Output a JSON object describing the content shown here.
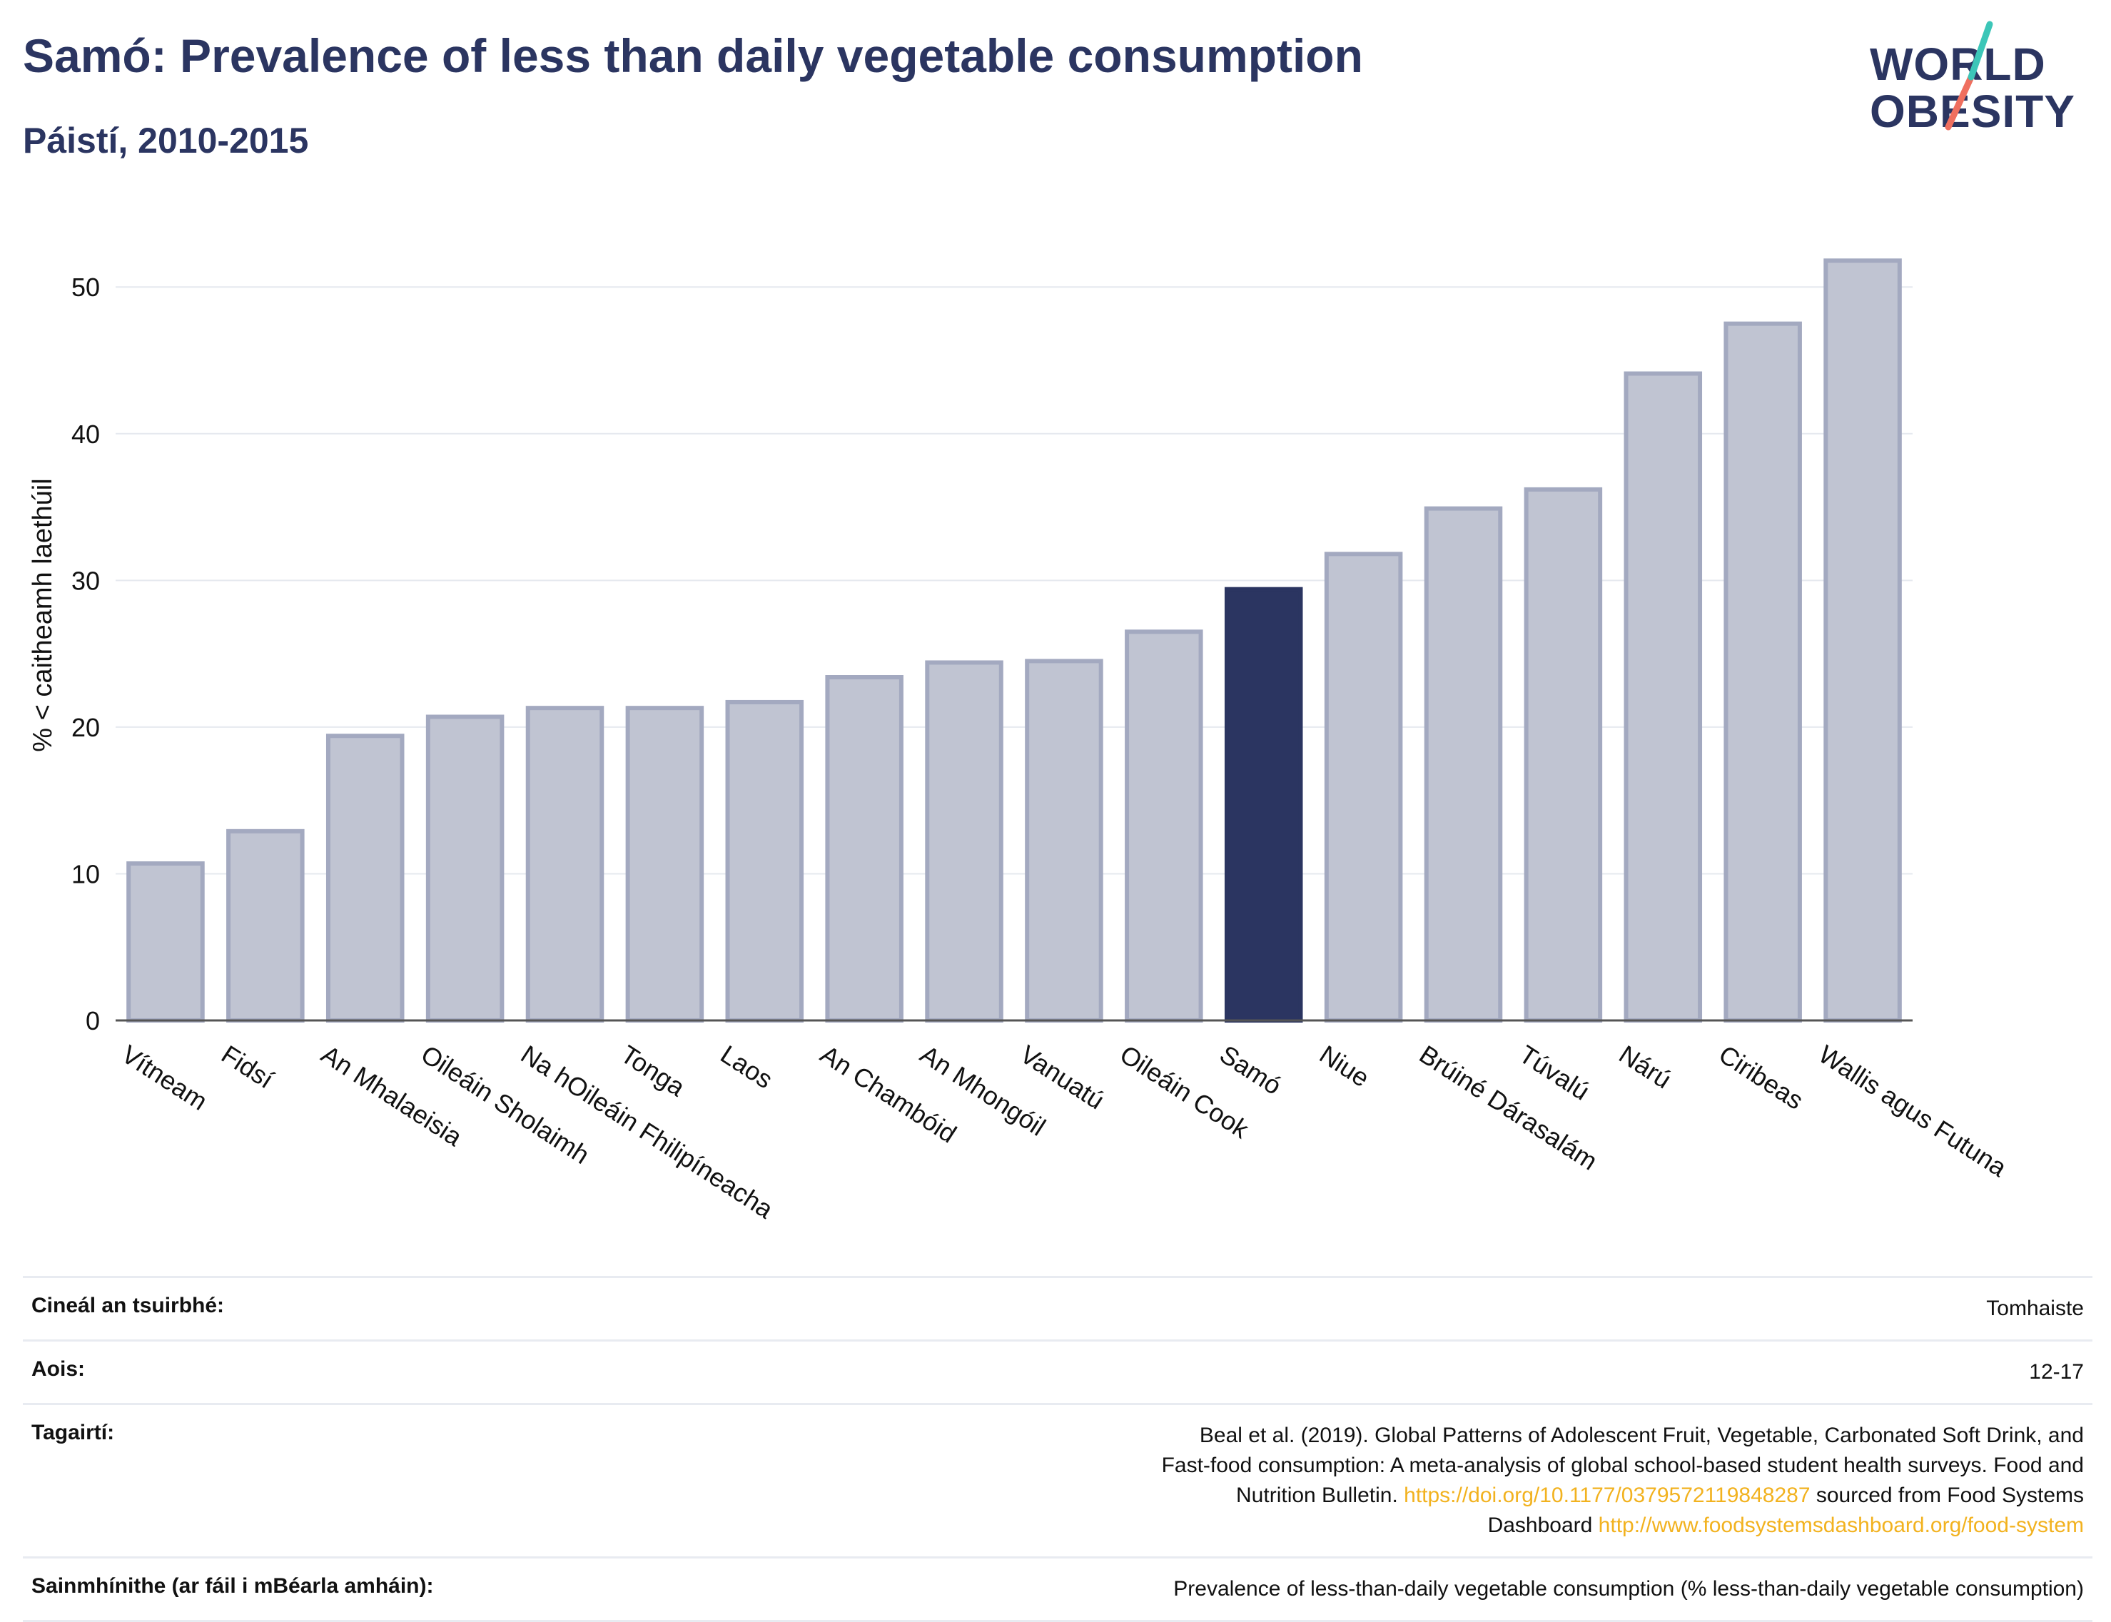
{
  "header": {
    "title": "Samó: Prevalence of less than daily vegetable consumption",
    "subtitle": "Páistí, 2010-2015"
  },
  "logo": {
    "line1": "WORLD",
    "line2": "OBESITY"
  },
  "colors": {
    "highlight": "#2b3561",
    "bar_fill": "#c0c4d2",
    "bar_stroke": "#a3a9c0",
    "grid": "#e6e9ef",
    "axis": "#555555",
    "logo_teal": "#3cc6b8",
    "logo_coral": "#ef6f5f",
    "link": "#f2b21f"
  },
  "chart_data": {
    "type": "bar",
    "ylabel": "% < caitheamh laethúil",
    "ylim": [
      0,
      54
    ],
    "yticks": [
      0,
      10,
      20,
      30,
      40,
      50
    ],
    "grid": true,
    "highlight": "Samó",
    "categories": [
      "Vítneam",
      "Fidsí",
      "An Mhalaeisia",
      "Oileáin Sholaimh",
      "Na hOileáin Fhilipíneacha",
      "Tonga",
      "Laos",
      "An Chambóid",
      "An Mhongóil",
      "Vanuatú",
      "Oileáin Cook",
      "Samó",
      "Niue",
      "Brúiné Dárasalám",
      "Túvalú",
      "Nárú",
      "Ciribeas",
      "Wallis agus Futuna"
    ],
    "values": [
      10.7,
      12.9,
      19.4,
      20.7,
      21.3,
      21.3,
      21.7,
      23.4,
      24.4,
      24.5,
      26.5,
      29.4,
      31.8,
      34.9,
      36.2,
      44.1,
      47.5,
      51.8
    ]
  },
  "info": {
    "rows": [
      {
        "label": "Cineál an tsuirbhé:",
        "value": "Tomhaiste"
      },
      {
        "label": "Aois:",
        "value": "12-17"
      },
      {
        "label": "Tagairtí:",
        "value": "Beal et al. (2019). Global Patterns of Adolescent Fruit, Vegetable, Carbonated Soft Drink, and Fast-food consumption: A meta-analysis of global school-based student health surveys. Food and Nutrition Bulletin.",
        "link1": "https://doi.org/10.1177/0379572119848287",
        "mid": " sourced from Food Systems Dashboard ",
        "link2": "http://www.foodsystemsdashboard.org/food-system"
      },
      {
        "label": "Sainmhínithe (ar fáil i mBéarla amháin):",
        "value": "Prevalence of less-than-daily vegetable consumption (% less-than-daily vegetable consumption)"
      }
    ]
  }
}
